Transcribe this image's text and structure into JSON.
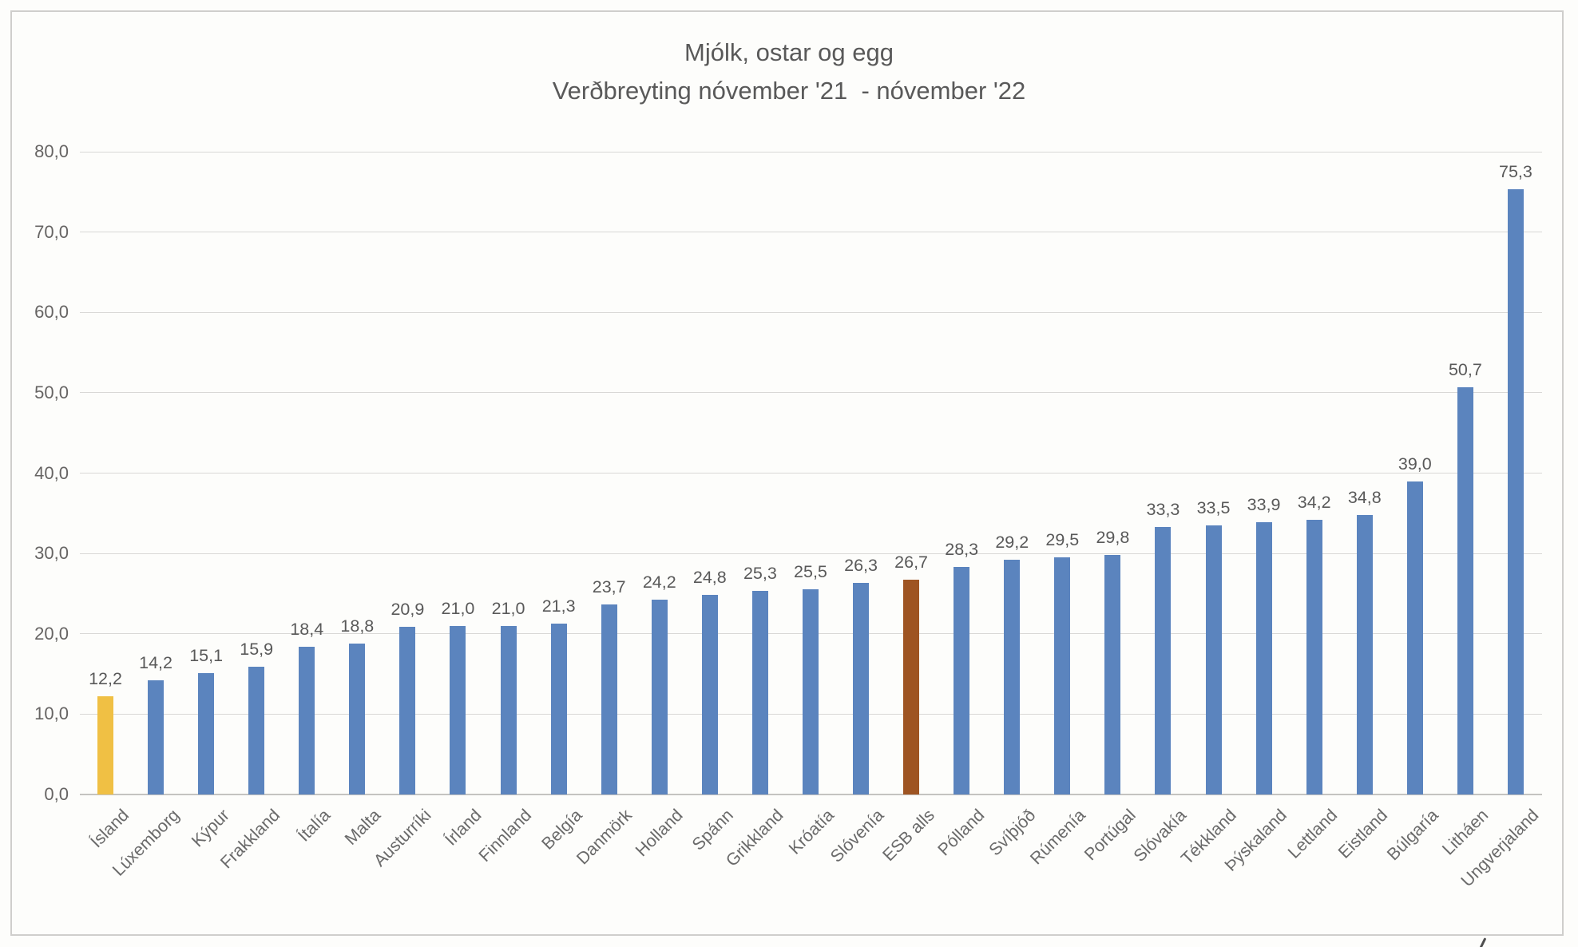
{
  "chart_data": {
    "type": "bar",
    "title": "Mjólk, ostar og egg",
    "subtitle": "Verðbreyting nóvember '21  - nóvember '22",
    "categories": [
      "Ísland",
      "Lúxemborg",
      "Kýpur",
      "Frakkland",
      "Ítalía",
      "Malta",
      "Austurríki",
      "Írland",
      "Finnland",
      "Belgía",
      "Danmörk",
      "Holland",
      "Spánn",
      "Grikkland",
      "Króatía",
      "Slóvenía",
      "ESB alls",
      "Pólland",
      "Svíþjóð",
      "Rúmenía",
      "Portúgal",
      "Slóvakía",
      "Tékkland",
      "Þýskaland",
      "Lettland",
      "Eistland",
      "Búlgaría",
      "Litháen",
      "Ungverjaland"
    ],
    "values": [
      12.2,
      14.2,
      15.1,
      15.9,
      18.4,
      18.8,
      20.9,
      21.0,
      21.0,
      21.3,
      23.7,
      24.2,
      24.8,
      25.3,
      25.5,
      26.3,
      26.7,
      28.3,
      29.2,
      29.5,
      29.8,
      33.3,
      33.5,
      33.9,
      34.2,
      34.8,
      39.0,
      50.7,
      75.3
    ],
    "value_labels": [
      "12,2",
      "14,2",
      "15,1",
      "15,9",
      "18,4",
      "18,8",
      "20,9",
      "21,0",
      "21,0",
      "21,3",
      "23,7",
      "24,2",
      "24,8",
      "25,3",
      "25,5",
      "26,3",
      "26,7",
      "28,3",
      "29,2",
      "29,5",
      "29,8",
      "33,3",
      "33,5",
      "33,9",
      "34,2",
      "34,8",
      "39,0",
      "50,7",
      "75,3"
    ],
    "y_ticks": [
      "0,0",
      "10,0",
      "20,0",
      "30,0",
      "40,0",
      "50,0",
      "60,0",
      "70,0",
      "80,0"
    ],
    "ylim": [
      0,
      80
    ],
    "grid": true,
    "legend": "none",
    "xlabel": "",
    "ylabel": "",
    "colors": {
      "default_bar": "#5B84BE",
      "island_bar": "#F0C044",
      "esb_bar": "#9E5422",
      "gridline": "#D9D8D6",
      "axis_line": "#C4C3C0",
      "title_text": "#595959",
      "value_label_text": "#595959",
      "y_tick_text": "#666463",
      "category_text": "#6A6A6A",
      "frame_border": "#CFCECC",
      "background": "#FDFDFB"
    },
    "highlight_indices": {
      "0": "island_bar",
      "16": "esb_bar"
    }
  }
}
